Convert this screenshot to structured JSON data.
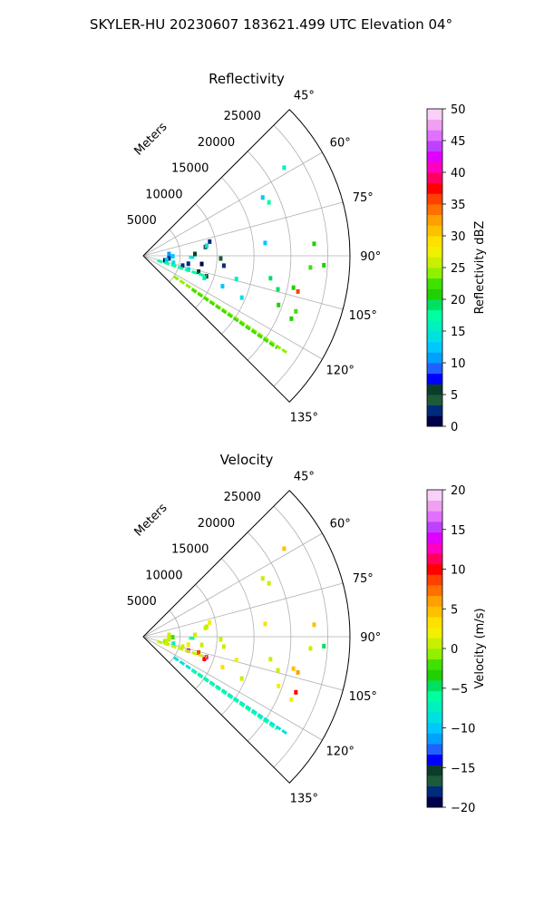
{
  "suptitle": "SKYLER-HU  20230607  183621.499 UTC Elevation 04°",
  "chart_data": [
    {
      "type": "polar-sector",
      "title": "Reflectivity",
      "radial_label": "Meters",
      "theta_range_deg": [
        45,
        135
      ],
      "theta_ticks": [
        "45°",
        "60°",
        "75°",
        "90°",
        "105°",
        "120°",
        "135°"
      ],
      "r_max": 28000,
      "r_ticks": [
        5000,
        10000,
        15000,
        20000,
        25000
      ],
      "r_tick_labels": [
        "5000",
        "10000",
        "15000",
        "20000",
        "25000"
      ],
      "colorbar": {
        "label": "Reflectivity dBZ",
        "range": [
          0,
          50
        ],
        "ticks": [
          0,
          5,
          10,
          15,
          20,
          25,
          30,
          35,
          40,
          45,
          50
        ],
        "tick_labels": [
          "0",
          "5",
          "10",
          "15",
          "20",
          "25",
          "30",
          "35",
          "40",
          "45",
          "50"
        ],
        "colors": [
          "#00004a",
          "#002a7c",
          "#1c5a3a",
          "#0c3d2a",
          "#0000ff",
          "#2060ff",
          "#00a0ff",
          "#00c8ff",
          "#00e0e0",
          "#00f0c0",
          "#00ffa0",
          "#00e060",
          "#20d000",
          "#40e000",
          "#90f000",
          "#c8f000",
          "#f0f000",
          "#ffe000",
          "#ffc000",
          "#ffa000",
          "#ff7000",
          "#ff4000",
          "#ff0000",
          "#ff0060",
          "#ff00c0",
          "#e000ff",
          "#c040ff",
          "#e070ff",
          "#f0a0f0",
          "#f8d0f8"
        ]
      },
      "gates": [
        {
          "theta": 104,
          "r": 5500,
          "v": 2
        },
        {
          "theta": 100,
          "r": 6200,
          "v": 3
        },
        {
          "theta": 98,
          "r": 8000,
          "v": 0
        },
        {
          "theta": 102,
          "r": 3000,
          "v": 1
        },
        {
          "theta": 96,
          "r": 3500,
          "v": 2
        },
        {
          "theta": 88,
          "r": 7000,
          "v": 5
        },
        {
          "theta": 82,
          "r": 8500,
          "v": 4
        },
        {
          "theta": 78,
          "r": 9200,
          "v": 3
        },
        {
          "theta": 106,
          "r": 7800,
          "v": 6
        },
        {
          "theta": 108,
          "r": 9000,
          "v": 5
        },
        {
          "theta": 92,
          "r": 10500,
          "v": 4
        },
        {
          "theta": 97,
          "r": 11000,
          "v": 3
        },
        {
          "theta": 100,
          "r": 3200,
          "v": 12
        },
        {
          "theta": 103,
          "r": 4200,
          "v": 14
        },
        {
          "theta": 107,
          "r": 6400,
          "v": 13
        },
        {
          "theta": 110,
          "r": 8800,
          "v": 15
        },
        {
          "theta": 111,
          "r": 11500,
          "v": 12
        },
        {
          "theta": 113,
          "r": 14500,
          "v": 14
        },
        {
          "theta": 91,
          "r": 4000,
          "v": 13
        },
        {
          "theta": 86,
          "r": 3500,
          "v": 11
        },
        {
          "theta": 81,
          "r": 8700,
          "v": 14
        },
        {
          "theta": 104,
          "r": 13000,
          "v": 16
        },
        {
          "theta": 64,
          "r": 18000,
          "v": 13
        },
        {
          "theta": 67,
          "r": 18500,
          "v": 18
        },
        {
          "theta": 58,
          "r": 22500,
          "v": 16
        },
        {
          "theta": 84,
          "r": 16600,
          "v": 12
        },
        {
          "theta": 100,
          "r": 17500,
          "v": 19
        },
        {
          "theta": 104,
          "r": 18800,
          "v": 19
        },
        {
          "theta": 110,
          "r": 19500,
          "v": 20
        },
        {
          "theta": 102,
          "r": 20800,
          "v": 21
        },
        {
          "theta": 103,
          "r": 21500,
          "v": 35
        },
        {
          "theta": 94,
          "r": 22700,
          "v": 22
        },
        {
          "theta": 86,
          "r": 23200,
          "v": 20
        },
        {
          "theta": 93,
          "r": 24500,
          "v": 21
        },
        {
          "theta": 110,
          "r": 22000,
          "v": 22
        },
        {
          "theta": 113,
          "r": 21800,
          "v": 21
        }
      ],
      "streaks": [
        {
          "theta": 124,
          "r0": 5000,
          "r1": 23500,
          "v": 24
        },
        {
          "theta": 124.6,
          "r0": 8000,
          "r1": 22000,
          "v": 22
        },
        {
          "theta": 108,
          "r0": 2000,
          "r1": 9000,
          "v": 17
        },
        {
          "theta": 92,
          "r0": 6200,
          "r1": 7200,
          "v": 14
        }
      ]
    },
    {
      "type": "polar-sector",
      "title": "Velocity",
      "radial_label": "Meters",
      "theta_range_deg": [
        45,
        135
      ],
      "theta_ticks": [
        "45°",
        "60°",
        "75°",
        "90°",
        "105°",
        "120°",
        "135°"
      ],
      "r_max": 28000,
      "r_ticks": [
        5000,
        10000,
        15000,
        20000,
        25000
      ],
      "r_tick_labels": [
        "5000",
        "10000",
        "15000",
        "20000",
        "25000"
      ],
      "colorbar": {
        "label": "Velocity (m/s)",
        "range": [
          -20,
          20
        ],
        "ticks": [
          -20,
          -15,
          -10,
          -5,
          0,
          5,
          10,
          15,
          20
        ],
        "tick_labels": [
          "−20",
          "−15",
          "−10",
          "−5",
          "0",
          "5",
          "10",
          "15",
          "20"
        ],
        "colors": [
          "#00004a",
          "#002a7c",
          "#1c5a3a",
          "#0c3d2a",
          "#0000ff",
          "#2060ff",
          "#00a0ff",
          "#00c8ff",
          "#00e0e0",
          "#00f0c0",
          "#00ffa0",
          "#00e060",
          "#20d000",
          "#40e000",
          "#90f000",
          "#c8f000",
          "#f0f000",
          "#ffe000",
          "#ffc000",
          "#ffa000",
          "#ff7000",
          "#ff4000",
          "#ff0000",
          "#ff0060",
          "#ff00c0",
          "#e000ff",
          "#c040ff",
          "#e070ff",
          "#f0a0f0",
          "#f8d0f8"
        ]
      },
      "gates": [
        {
          "theta": 104,
          "r": 5500,
          "v": 1
        },
        {
          "theta": 100,
          "r": 6200,
          "v": 2
        },
        {
          "theta": 98,
          "r": 8000,
          "v": 0
        },
        {
          "theta": 102,
          "r": 3000,
          "v": -1
        },
        {
          "theta": 96,
          "r": 3500,
          "v": 0
        },
        {
          "theta": 88,
          "r": 7000,
          "v": 1
        },
        {
          "theta": 82,
          "r": 8500,
          "v": 0
        },
        {
          "theta": 78,
          "r": 9200,
          "v": 2
        },
        {
          "theta": 106,
          "r": 7800,
          "v": 9
        },
        {
          "theta": 108,
          "r": 9000,
          "v": 12
        },
        {
          "theta": 92,
          "r": 10500,
          "v": 0
        },
        {
          "theta": 97,
          "r": 11000,
          "v": 1
        },
        {
          "theta": 100,
          "r": 3200,
          "v": 0
        },
        {
          "theta": 103,
          "r": 4200,
          "v": -8
        },
        {
          "theta": 107,
          "r": 6400,
          "v": 14
        },
        {
          "theta": 110,
          "r": 8800,
          "v": 10
        },
        {
          "theta": 111,
          "r": 11500,
          "v": 3
        },
        {
          "theta": 113,
          "r": 14500,
          "v": 1
        },
        {
          "theta": 91,
          "r": 4000,
          "v": -2
        },
        {
          "theta": 86,
          "r": 3500,
          "v": 1
        },
        {
          "theta": 81,
          "r": 8700,
          "v": 0
        },
        {
          "theta": 104,
          "r": 13000,
          "v": 2
        },
        {
          "theta": 64,
          "r": 18000,
          "v": 1
        },
        {
          "theta": 67,
          "r": 18500,
          "v": 0
        },
        {
          "theta": 58,
          "r": 22500,
          "v": 5
        },
        {
          "theta": 84,
          "r": 16600,
          "v": 3
        },
        {
          "theta": 100,
          "r": 17500,
          "v": 1
        },
        {
          "theta": 104,
          "r": 18800,
          "v": 0
        },
        {
          "theta": 110,
          "r": 19500,
          "v": 2
        },
        {
          "theta": 102,
          "r": 20800,
          "v": 4
        },
        {
          "theta": 103,
          "r": 21500,
          "v": 6
        },
        {
          "theta": 94,
          "r": 22700,
          "v": 1
        },
        {
          "theta": 86,
          "r": 23200,
          "v": 5
        },
        {
          "theta": 93,
          "r": 24500,
          "v": -5
        },
        {
          "theta": 110,
          "r": 22000,
          "v": 10
        },
        {
          "theta": 113,
          "r": 21800,
          "v": 2
        }
      ],
      "streaks": [
        {
          "theta": 124,
          "r0": 5000,
          "r1": 23500,
          "v": -9
        },
        {
          "theta": 124.6,
          "r0": 8000,
          "r1": 22000,
          "v": -6
        },
        {
          "theta": 108,
          "r0": 2000,
          "r1": 9000,
          "v": 1
        },
        {
          "theta": 92,
          "r0": 6200,
          "r1": 7200,
          "v": -6
        }
      ]
    }
  ]
}
